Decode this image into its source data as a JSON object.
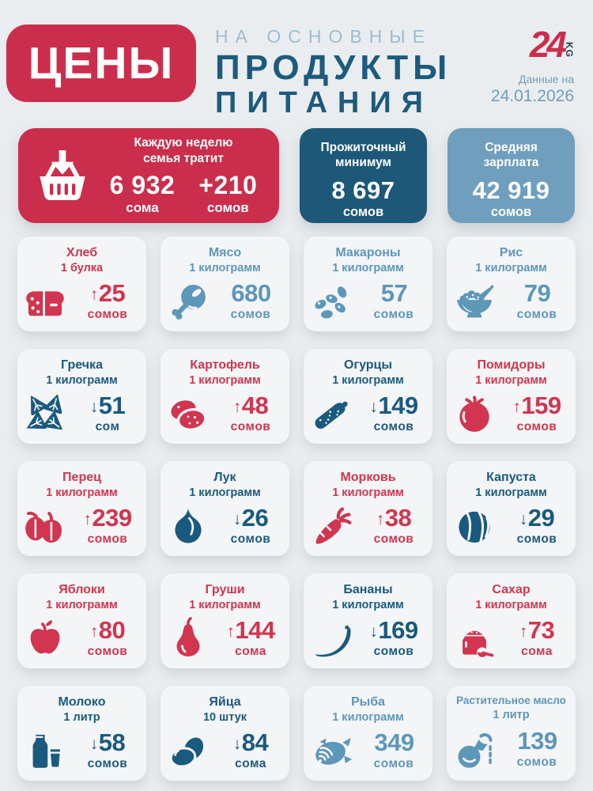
{
  "header": {
    "title_box": "ЦЕНЫ",
    "subtitle_line1": "НА ОСНОВНЫЕ",
    "subtitle_line2": "ПРОДУКТЫ",
    "subtitle_line3": "ПИТАНИЯ",
    "logo_number": "24",
    "logo_suffix": "KG",
    "date_label": "Данные на",
    "date_value": "24.01.2026"
  },
  "summary": {
    "weekly": {
      "title_line1": "Каждую неделю",
      "title_line2": "семья тратит",
      "amount": "6 932",
      "amount_unit": "сома",
      "change": "+210",
      "change_unit": "сомов"
    },
    "minimum": {
      "title_line1": "Прожиточный",
      "title_line2": "минимум",
      "amount": "8 697",
      "unit": "сомов"
    },
    "salary": {
      "title_line1": "Средняя",
      "title_line2": "зарплата",
      "amount": "42 919",
      "unit": "сомов"
    }
  },
  "colors": {
    "red": "#cb2e4c",
    "red_text": "#d2354f",
    "dark_blue": "#1d5878",
    "dark_blue_text": "#1a5a7e",
    "light_blue": "#6f9fbd",
    "light_blue_text": "#5d97ba",
    "background": "#eaedef",
    "card_background": "#f4f5f7"
  },
  "products": [
    {
      "name": "Хлеб",
      "quantity": "1 булка",
      "icon": "bread",
      "trend": "up",
      "value": "25",
      "unit": "сомов"
    },
    {
      "name": "Мясо",
      "quantity": "1 килограмм",
      "icon": "meat",
      "trend": "none",
      "value": "680",
      "unit": "сомов"
    },
    {
      "name": "Макароны",
      "quantity": "1 килограмм",
      "icon": "pasta",
      "trend": "none",
      "value": "57",
      "unit": "сомов"
    },
    {
      "name": "Рис",
      "quantity": "1 килограмм",
      "icon": "rice",
      "trend": "none",
      "value": "79",
      "unit": "сомов"
    },
    {
      "name": "Гречка",
      "quantity": "1 килограмм",
      "icon": "buckwheat",
      "trend": "down",
      "value": "51",
      "unit": "сом"
    },
    {
      "name": "Картофель",
      "quantity": "1 килограмм",
      "icon": "potato",
      "trend": "up",
      "value": "48",
      "unit": "сомов"
    },
    {
      "name": "Огурцы",
      "quantity": "1 килограмм",
      "icon": "cucumber",
      "trend": "down",
      "value": "149",
      "unit": "сомов"
    },
    {
      "name": "Помидоры",
      "quantity": "1 килограмм",
      "icon": "tomato",
      "trend": "up",
      "value": "159",
      "unit": "сомов"
    },
    {
      "name": "Перец",
      "quantity": "1 килограмм",
      "icon": "pepper",
      "trend": "up",
      "value": "239",
      "unit": "сомов"
    },
    {
      "name": "Лук",
      "quantity": "1 килограмм",
      "icon": "onion",
      "trend": "down",
      "value": "26",
      "unit": "сомов"
    },
    {
      "name": "Морковь",
      "quantity": "1 килограмм",
      "icon": "carrot",
      "trend": "up",
      "value": "38",
      "unit": "сомов"
    },
    {
      "name": "Капуста",
      "quantity": "1 килограмм",
      "icon": "cabbage",
      "trend": "down",
      "value": "29",
      "unit": "сомов"
    },
    {
      "name": "Яблоки",
      "quantity": "1 килограмм",
      "icon": "apple",
      "trend": "up",
      "value": "80",
      "unit": "сомов"
    },
    {
      "name": "Груши",
      "quantity": "1 килограмм",
      "icon": "pear",
      "trend": "up",
      "value": "144",
      "unit": "сома"
    },
    {
      "name": "Бананы",
      "quantity": "1 килограмм",
      "icon": "banana",
      "trend": "down",
      "value": "169",
      "unit": "сомов"
    },
    {
      "name": "Сахар",
      "quantity": "1 килограмм",
      "icon": "sugar",
      "trend": "up",
      "value": "73",
      "unit": "сома"
    },
    {
      "name": "Молоко",
      "quantity": "1 литр",
      "icon": "milk",
      "trend": "down",
      "value": "58",
      "unit": "сомов"
    },
    {
      "name": "Яйца",
      "quantity": "10 штук",
      "icon": "eggs",
      "trend": "down",
      "value": "84",
      "unit": "сома"
    },
    {
      "name": "Рыба",
      "quantity": "1 килограмм",
      "icon": "fish",
      "trend": "none",
      "value": "349",
      "unit": "сомов"
    },
    {
      "name": "Растительное масло",
      "quantity": "1 литр",
      "icon": "oil",
      "trend": "none",
      "value": "139",
      "unit": "сомов"
    }
  ],
  "chart_data": {
    "type": "table",
    "title": "Цены на основные продукты питания",
    "date": "24.01.2026",
    "summary": [
      {
        "label": "Каждую неделю семья тратит",
        "value": 6932,
        "unit": "сома",
        "change": 210
      },
      {
        "label": "Прожиточный минимум",
        "value": 8697,
        "unit": "сомов"
      },
      {
        "label": "Средняя зарплата",
        "value": 42919,
        "unit": "сомов"
      }
    ],
    "categories": [
      "Хлеб (1 булка)",
      "Мясо (1 кг)",
      "Макароны (1 кг)",
      "Рис (1 кг)",
      "Гречка (1 кг)",
      "Картофель (1 кг)",
      "Огурцы (1 кг)",
      "Помидоры (1 кг)",
      "Перец (1 кг)",
      "Лук (1 кг)",
      "Морковь (1 кг)",
      "Капуста (1 кг)",
      "Яблоки (1 кг)",
      "Груши (1 кг)",
      "Бананы (1 кг)",
      "Сахар (1 кг)",
      "Молоко (1 л)",
      "Яйца (10 шт)",
      "Рыба (1 кг)",
      "Растительное масло (1 л)"
    ],
    "values": [
      25,
      680,
      57,
      79,
      51,
      48,
      149,
      159,
      239,
      26,
      38,
      29,
      80,
      144,
      169,
      73,
      58,
      84,
      349,
      139
    ],
    "trends": [
      "up",
      "none",
      "none",
      "none",
      "down",
      "up",
      "down",
      "up",
      "up",
      "down",
      "up",
      "down",
      "up",
      "up",
      "down",
      "up",
      "down",
      "down",
      "none",
      "none"
    ],
    "ylabel": "сом"
  }
}
